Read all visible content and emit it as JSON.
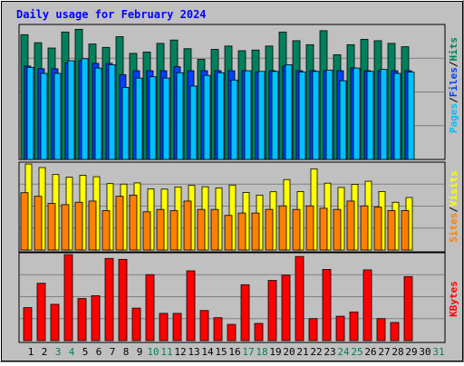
{
  "title": "Daily usage for February 2024",
  "colors": {
    "hits": "#00805c",
    "files": "#0040ff",
    "pages": "#00c0ff",
    "visits": "#ffff00",
    "sites": "#ff8000",
    "kbytes": "#ff0000",
    "weekend_day": "#00805c",
    "weekday_day": "#000000",
    "title": "#0000ff",
    "panel_bg": "#c0c0c0",
    "frame": "#000000"
  },
  "chart_data": [
    {
      "type": "bar",
      "panel": "hits-files-pages",
      "scale_label": "19962",
      "ylim": [
        0,
        19962
      ],
      "grid": true,
      "legend_labels": [
        "Pages",
        "/",
        "Files",
        "/",
        "Hits"
      ],
      "categories": [
        "1",
        "2",
        "3",
        "4",
        "5",
        "6",
        "7",
        "8",
        "9",
        "10",
        "11",
        "12",
        "13",
        "14",
        "15",
        "16",
        "17",
        "18",
        "19",
        "20",
        "21",
        "22",
        "23",
        "24",
        "25",
        "26",
        "27",
        "28",
        "29"
      ],
      "series": [
        {
          "name": "Hits",
          "values": [
            18700,
            17500,
            16700,
            19100,
            19500,
            17300,
            16800,
            18400,
            15900,
            16100,
            17400,
            17900,
            16600,
            15000,
            16500,
            17000,
            16300,
            16400,
            17000,
            19100,
            17800,
            17200,
            19300,
            15700,
            17200,
            18000,
            17800,
            17400,
            16900
          ]
        },
        {
          "name": "Files",
          "values": [
            14000,
            13600,
            13600,
            14500,
            14800,
            14400,
            14400,
            12700,
            13300,
            13300,
            13300,
            13900,
            13300,
            13300,
            13300,
            13300,
            13300,
            13100,
            13300,
            14000,
            13300,
            13300,
            13300,
            13300,
            13700,
            13300,
            13300,
            13300,
            13300
          ]
        },
        {
          "name": "Pages",
          "values": [
            13800,
            12900,
            12900,
            14800,
            15100,
            13700,
            14200,
            10800,
            12200,
            12400,
            12200,
            13000,
            11000,
            12600,
            13000,
            11900,
            13300,
            13200,
            13200,
            14200,
            13100,
            13200,
            13400,
            11800,
            13700,
            13200,
            13500,
            12900,
            13100
          ]
        }
      ]
    },
    {
      "type": "bar",
      "panel": "visits-sites",
      "scale_label": "3603",
      "ylim": [
        0,
        3603
      ],
      "grid": true,
      "legend_labels": [
        "Sites",
        "/",
        "Visits"
      ],
      "categories": [
        "1",
        "2",
        "3",
        "4",
        "5",
        "6",
        "7",
        "8",
        "9",
        "10",
        "11",
        "12",
        "13",
        "14",
        "15",
        "16",
        "17",
        "18",
        "19",
        "20",
        "21",
        "22",
        "23",
        "24",
        "25",
        "26",
        "27",
        "28",
        "29"
      ],
      "series": [
        {
          "name": "Visits",
          "values": [
            3600,
            3450,
            3160,
            3050,
            3130,
            3070,
            2780,
            2760,
            2810,
            2560,
            2550,
            2640,
            2710,
            2650,
            2600,
            2720,
            2410,
            2300,
            2440,
            2950,
            2450,
            3400,
            2800,
            2620,
            2750,
            2880,
            2450,
            2000,
            2200
          ]
        },
        {
          "name": "Sites",
          "values": [
            2400,
            2250,
            1950,
            1900,
            2000,
            2050,
            1650,
            2250,
            2300,
            1600,
            1700,
            1650,
            2050,
            1700,
            1700,
            1450,
            1550,
            1550,
            1700,
            1850,
            1700,
            1850,
            1750,
            1700,
            2050,
            1850,
            1800,
            1650,
            1650
          ]
        }
      ]
    },
    {
      "type": "bar",
      "panel": "kbytes",
      "scale_label": "1800865",
      "ylim": [
        0,
        1800865
      ],
      "grid": true,
      "legend_labels": [
        "KBytes"
      ],
      "categories": [
        "1",
        "2",
        "3",
        "4",
        "5",
        "6",
        "7",
        "8",
        "9",
        "10",
        "11",
        "12",
        "13",
        "14",
        "15",
        "16",
        "17",
        "18",
        "19",
        "20",
        "21",
        "22",
        "23",
        "24",
        "25",
        "26",
        "27",
        "28",
        "29"
      ],
      "series": [
        {
          "name": "KBytes",
          "values": [
            690000,
            1200000,
            760000,
            1800000,
            880000,
            940000,
            1720000,
            1700000,
            680000,
            1380000,
            570000,
            570000,
            1460000,
            630000,
            480000,
            340000,
            1170000,
            360000,
            1260000,
            1370000,
            1760000,
            460000,
            1490000,
            510000,
            600000,
            1480000,
            460000,
            380000,
            1340000
          ]
        }
      ]
    }
  ],
  "day_labels": [
    {
      "label": "1",
      "weekend": false
    },
    {
      "label": "2",
      "weekend": false
    },
    {
      "label": "3",
      "weekend": true
    },
    {
      "label": "4",
      "weekend": true
    },
    {
      "label": "5",
      "weekend": false
    },
    {
      "label": "6",
      "weekend": false
    },
    {
      "label": "7",
      "weekend": false
    },
    {
      "label": "8",
      "weekend": false
    },
    {
      "label": "9",
      "weekend": false
    },
    {
      "label": "10",
      "weekend": true
    },
    {
      "label": "11",
      "weekend": true
    },
    {
      "label": "12",
      "weekend": false
    },
    {
      "label": "13",
      "weekend": false
    },
    {
      "label": "14",
      "weekend": false
    },
    {
      "label": "15",
      "weekend": false
    },
    {
      "label": "16",
      "weekend": false
    },
    {
      "label": "17",
      "weekend": true
    },
    {
      "label": "18",
      "weekend": true
    },
    {
      "label": "19",
      "weekend": false
    },
    {
      "label": "20",
      "weekend": false
    },
    {
      "label": "21",
      "weekend": false
    },
    {
      "label": "22",
      "weekend": false
    },
    {
      "label": "23",
      "weekend": false
    },
    {
      "label": "24",
      "weekend": true
    },
    {
      "label": "25",
      "weekend": true
    },
    {
      "label": "26",
      "weekend": false
    },
    {
      "label": "27",
      "weekend": false
    },
    {
      "label": "28",
      "weekend": false
    },
    {
      "label": "29",
      "weekend": false
    },
    {
      "label": "30",
      "weekend": false
    },
    {
      "label": "31",
      "weekend": true
    }
  ]
}
